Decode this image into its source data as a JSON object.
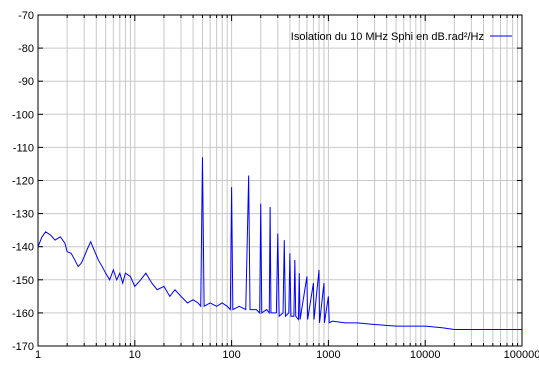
{
  "chart_data": {
    "type": "line",
    "title": "",
    "xlabel": "",
    "ylabel": "",
    "x_scale": "log",
    "xlim": [
      1,
      100000
    ],
    "ylim": [
      -170,
      -70
    ],
    "grid": true,
    "legend_position": "top-right",
    "x_ticks": [
      "1",
      "10",
      "100",
      "1000",
      "10000",
      "100000"
    ],
    "y_ticks": [
      "-70",
      "-80",
      "-90",
      "-100",
      "-110",
      "-120",
      "-130",
      "-140",
      "-150",
      "-160",
      "-170"
    ],
    "series": [
      {
        "name": "Isolation du 10 MHz Sphi en dB.rad²/Hz",
        "color": "#0000ff",
        "points": [
          [
            1.0,
            -140
          ],
          [
            1.1,
            -137
          ],
          [
            1.2,
            -135.5
          ],
          [
            1.35,
            -136.5
          ],
          [
            1.5,
            -138
          ],
          [
            1.7,
            -137
          ],
          [
            1.9,
            -139
          ],
          [
            2.0,
            -141.5
          ],
          [
            2.2,
            -142
          ],
          [
            2.4,
            -144
          ],
          [
            2.6,
            -146
          ],
          [
            2.8,
            -145
          ],
          [
            3.0,
            -143
          ],
          [
            3.2,
            -141
          ],
          [
            3.5,
            -138.5
          ],
          [
            3.8,
            -141
          ],
          [
            4.2,
            -144
          ],
          [
            4.6,
            -146
          ],
          [
            5.0,
            -148
          ],
          [
            5.5,
            -150
          ],
          [
            6.0,
            -147
          ],
          [
            6.5,
            -150
          ],
          [
            7.0,
            -148
          ],
          [
            7.5,
            -151
          ],
          [
            8.0,
            -148
          ],
          [
            9.0,
            -149
          ],
          [
            10.0,
            -152
          ],
          [
            11.5,
            -150
          ],
          [
            13.0,
            -148
          ],
          [
            15.0,
            -151
          ],
          [
            17.0,
            -153
          ],
          [
            20.0,
            -152
          ],
          [
            23.0,
            -155
          ],
          [
            26.0,
            -153
          ],
          [
            30.0,
            -155
          ],
          [
            35.0,
            -157
          ],
          [
            40.0,
            -156
          ],
          [
            45.0,
            -157
          ],
          [
            48.0,
            -158
          ],
          [
            50.0,
            -113
          ],
          [
            52.0,
            -158
          ],
          [
            60.0,
            -157
          ],
          [
            70.0,
            -158
          ],
          [
            80.0,
            -157
          ],
          [
            90.0,
            -158
          ],
          [
            97.0,
            -159
          ],
          [
            100.0,
            -122
          ],
          [
            103.0,
            -159
          ],
          [
            120.0,
            -158
          ],
          [
            140.0,
            -159
          ],
          [
            150.0,
            -118.5
          ],
          [
            155.0,
            -159
          ],
          [
            180.0,
            -159
          ],
          [
            195.0,
            -160
          ],
          [
            200.0,
            -127
          ],
          [
            205.0,
            -160
          ],
          [
            230.0,
            -159
          ],
          [
            245.0,
            -160
          ],
          [
            250.0,
            -128
          ],
          [
            255.0,
            -160
          ],
          [
            290.0,
            -160
          ],
          [
            300.0,
            -136
          ],
          [
            310.0,
            -161
          ],
          [
            340.0,
            -160
          ],
          [
            350.0,
            -138
          ],
          [
            360.0,
            -161
          ],
          [
            390.0,
            -160
          ],
          [
            400.0,
            -142
          ],
          [
            410.0,
            -161
          ],
          [
            440.0,
            -161
          ],
          [
            450.0,
            -144
          ],
          [
            460.0,
            -161
          ],
          [
            490.0,
            -162
          ],
          [
            500.0,
            -148
          ],
          [
            510.0,
            -162
          ],
          [
            600.0,
            -149
          ],
          [
            610.0,
            -162
          ],
          [
            700.0,
            -151
          ],
          [
            710.0,
            -162
          ],
          [
            800.0,
            -147
          ],
          [
            810.0,
            -163
          ],
          [
            900.0,
            -151
          ],
          [
            910.0,
            -163
          ],
          [
            1000.0,
            -155
          ],
          [
            1020.0,
            -163
          ],
          [
            1100.0,
            -162.5
          ],
          [
            1500.0,
            -163
          ],
          [
            2000.0,
            -163
          ],
          [
            3000.0,
            -163.5
          ],
          [
            5000.0,
            -164
          ],
          [
            7000.0,
            -164
          ],
          [
            10000.0,
            -164
          ],
          [
            15000.0,
            -164.5
          ],
          [
            20000.0,
            -165
          ],
          [
            30000.0,
            -165
          ],
          [
            50000.0,
            -165
          ],
          [
            70000.0,
            -165
          ],
          [
            100000.0,
            -165
          ]
        ]
      }
    ]
  }
}
